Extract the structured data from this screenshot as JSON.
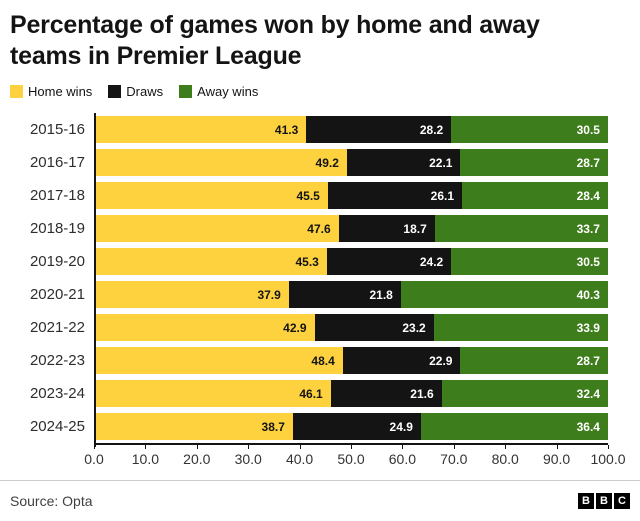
{
  "title": "Percentage of games won by home and away teams in Premier League",
  "legend": [
    {
      "label": "Home wins",
      "color": "#fdd23e"
    },
    {
      "label": "Draws",
      "color": "#141414"
    },
    {
      "label": "Away wins",
      "color": "#3e7d1c"
    }
  ],
  "chart_data": {
    "type": "bar",
    "stacked": true,
    "orientation": "horizontal",
    "title": "Percentage of games won by home and away teams in Premier League",
    "categories": [
      "2015-16",
      "2016-17",
      "2017-18",
      "2018-19",
      "2019-20",
      "2020-21",
      "2021-22",
      "2022-23",
      "2023-24",
      "2024-25"
    ],
    "series": [
      {
        "name": "Home wins",
        "color": "#fdd23e",
        "value_color": "#141414",
        "values": [
          41.3,
          49.2,
          45.5,
          47.6,
          45.3,
          37.9,
          42.9,
          48.4,
          46.1,
          38.7
        ]
      },
      {
        "name": "Draws",
        "color": "#141414",
        "value_color": "#ffffff",
        "values": [
          28.2,
          22.1,
          26.1,
          18.7,
          24.2,
          21.8,
          23.2,
          22.9,
          21.6,
          24.9
        ]
      },
      {
        "name": "Away wins",
        "color": "#3e7d1c",
        "value_color": "#ffffff",
        "values": [
          30.5,
          28.7,
          28.4,
          33.7,
          30.5,
          40.3,
          33.9,
          28.7,
          32.4,
          36.4
        ]
      }
    ],
    "xlim": [
      0,
      100
    ],
    "x_ticks": [
      "0.0",
      "10.0",
      "20.0",
      "30.0",
      "40.0",
      "50.0",
      "60.0",
      "70.0",
      "80.0",
      "90.0",
      "100.0"
    ],
    "grid": false,
    "legend_position": "top"
  },
  "footer": {
    "source": "Source: Opta",
    "logo_letters": [
      "B",
      "B",
      "C"
    ]
  }
}
